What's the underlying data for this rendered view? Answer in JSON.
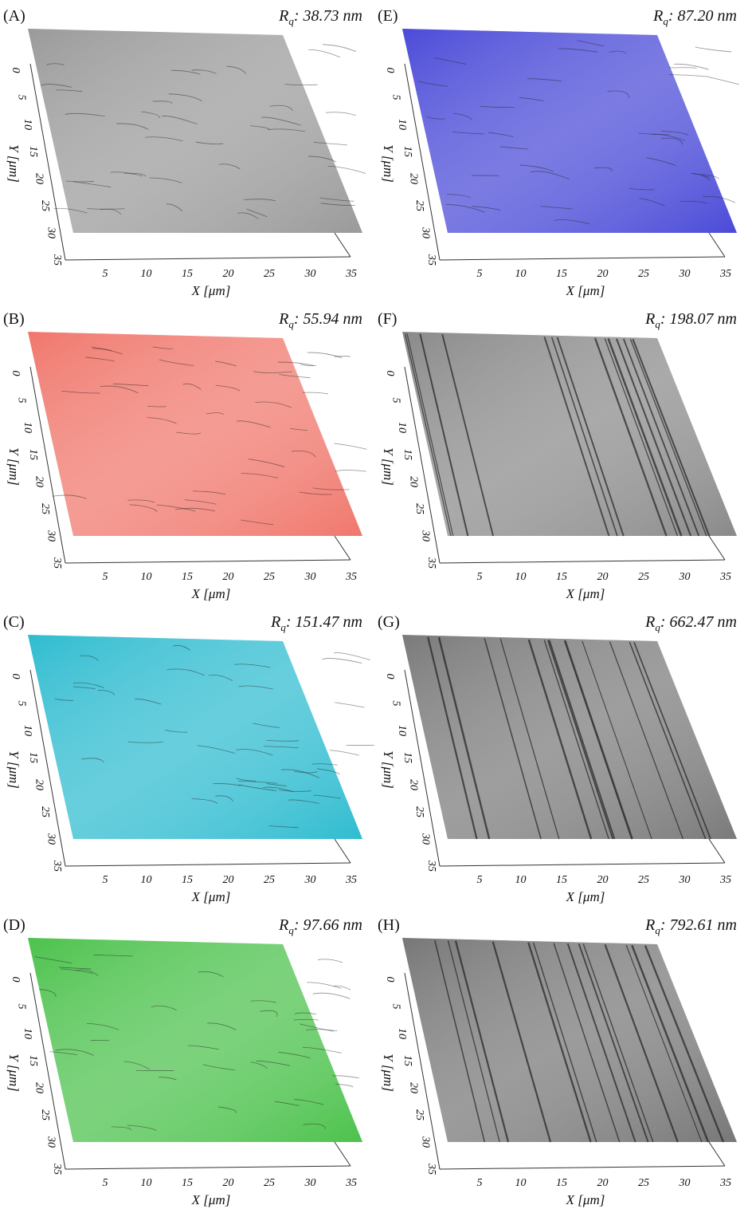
{
  "axes": {
    "y_label": "Y [μm]",
    "x_label": "X [μm]",
    "y_ticks": [
      "0",
      "5",
      "10",
      "15",
      "20",
      "25",
      "30",
      "35"
    ],
    "x_ticks": [
      "5",
      "10",
      "15",
      "20",
      "25",
      "30",
      "35"
    ],
    "rq_symbol": "R",
    "rq_subscript": "q"
  },
  "panels": [
    {
      "label": "(A)",
      "rq_text": ": 38.73 nm",
      "surface_color": "#9a9a9a"
    },
    {
      "label": "(B)",
      "rq_text": ": 55.94 nm",
      "surface_color": "#f0776c"
    },
    {
      "label": "(C)",
      "rq_text": ": 151.47 nm",
      "surface_color": "#2fbcd0"
    },
    {
      "label": "(D)",
      "rq_text": ": 97.66 nm",
      "surface_color": "#4cc24c"
    },
    {
      "label": "(E)",
      "rq_text": ": 87.20 nm",
      "surface_color": "#4a4ad8"
    },
    {
      "label": "(F)",
      "rq_text": ": 198.07 nm",
      "surface_color": "#8a8a8a"
    },
    {
      "label": "(G)",
      "rq_text": ": 662.47 nm",
      "surface_color": "#7a7a7a"
    },
    {
      "label": "(H)",
      "rq_text": ": 792.61 nm",
      "surface_color": "#777777"
    }
  ]
}
